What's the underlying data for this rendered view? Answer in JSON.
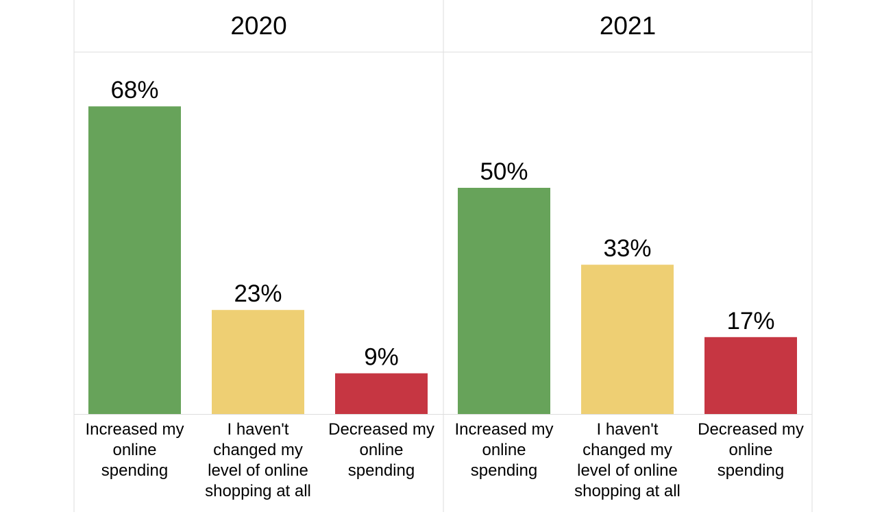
{
  "chart_data": [
    {
      "type": "bar",
      "title": "2020",
      "categories": [
        "Increased my online spending",
        "I haven't changed my level of online shopping at all",
        "Decreased my online spending"
      ],
      "category_lines": [
        [
          "Increased my",
          "online",
          "spending"
        ],
        [
          "I haven't",
          "changed my",
          "level of online",
          "shopping at all"
        ],
        [
          "Decreased my",
          "online",
          "spending"
        ]
      ],
      "values": [
        68,
        23,
        9
      ],
      "value_labels": [
        "68%",
        "23%",
        "9%"
      ],
      "colors": [
        "#67a35a",
        "#eecf73",
        "#c63642"
      ],
      "ylim": [
        0,
        100
      ],
      "grid": false
    },
    {
      "type": "bar",
      "title": "2021",
      "categories": [
        "Increased my online spending",
        "I haven't changed my level of online shopping at all",
        "Decreased my online spending"
      ],
      "category_lines": [
        [
          "Increased my",
          "online",
          "spending"
        ],
        [
          "I haven't",
          "changed my",
          "level of online",
          "shopping at all"
        ],
        [
          "Decreased my",
          "online",
          "spending"
        ]
      ],
      "values": [
        50,
        33,
        17
      ],
      "value_labels": [
        "50%",
        "33%",
        "17%"
      ],
      "colors": [
        "#67a35a",
        "#eecf73",
        "#c63642"
      ],
      "ylim": [
        0,
        100
      ],
      "grid": false
    }
  ]
}
